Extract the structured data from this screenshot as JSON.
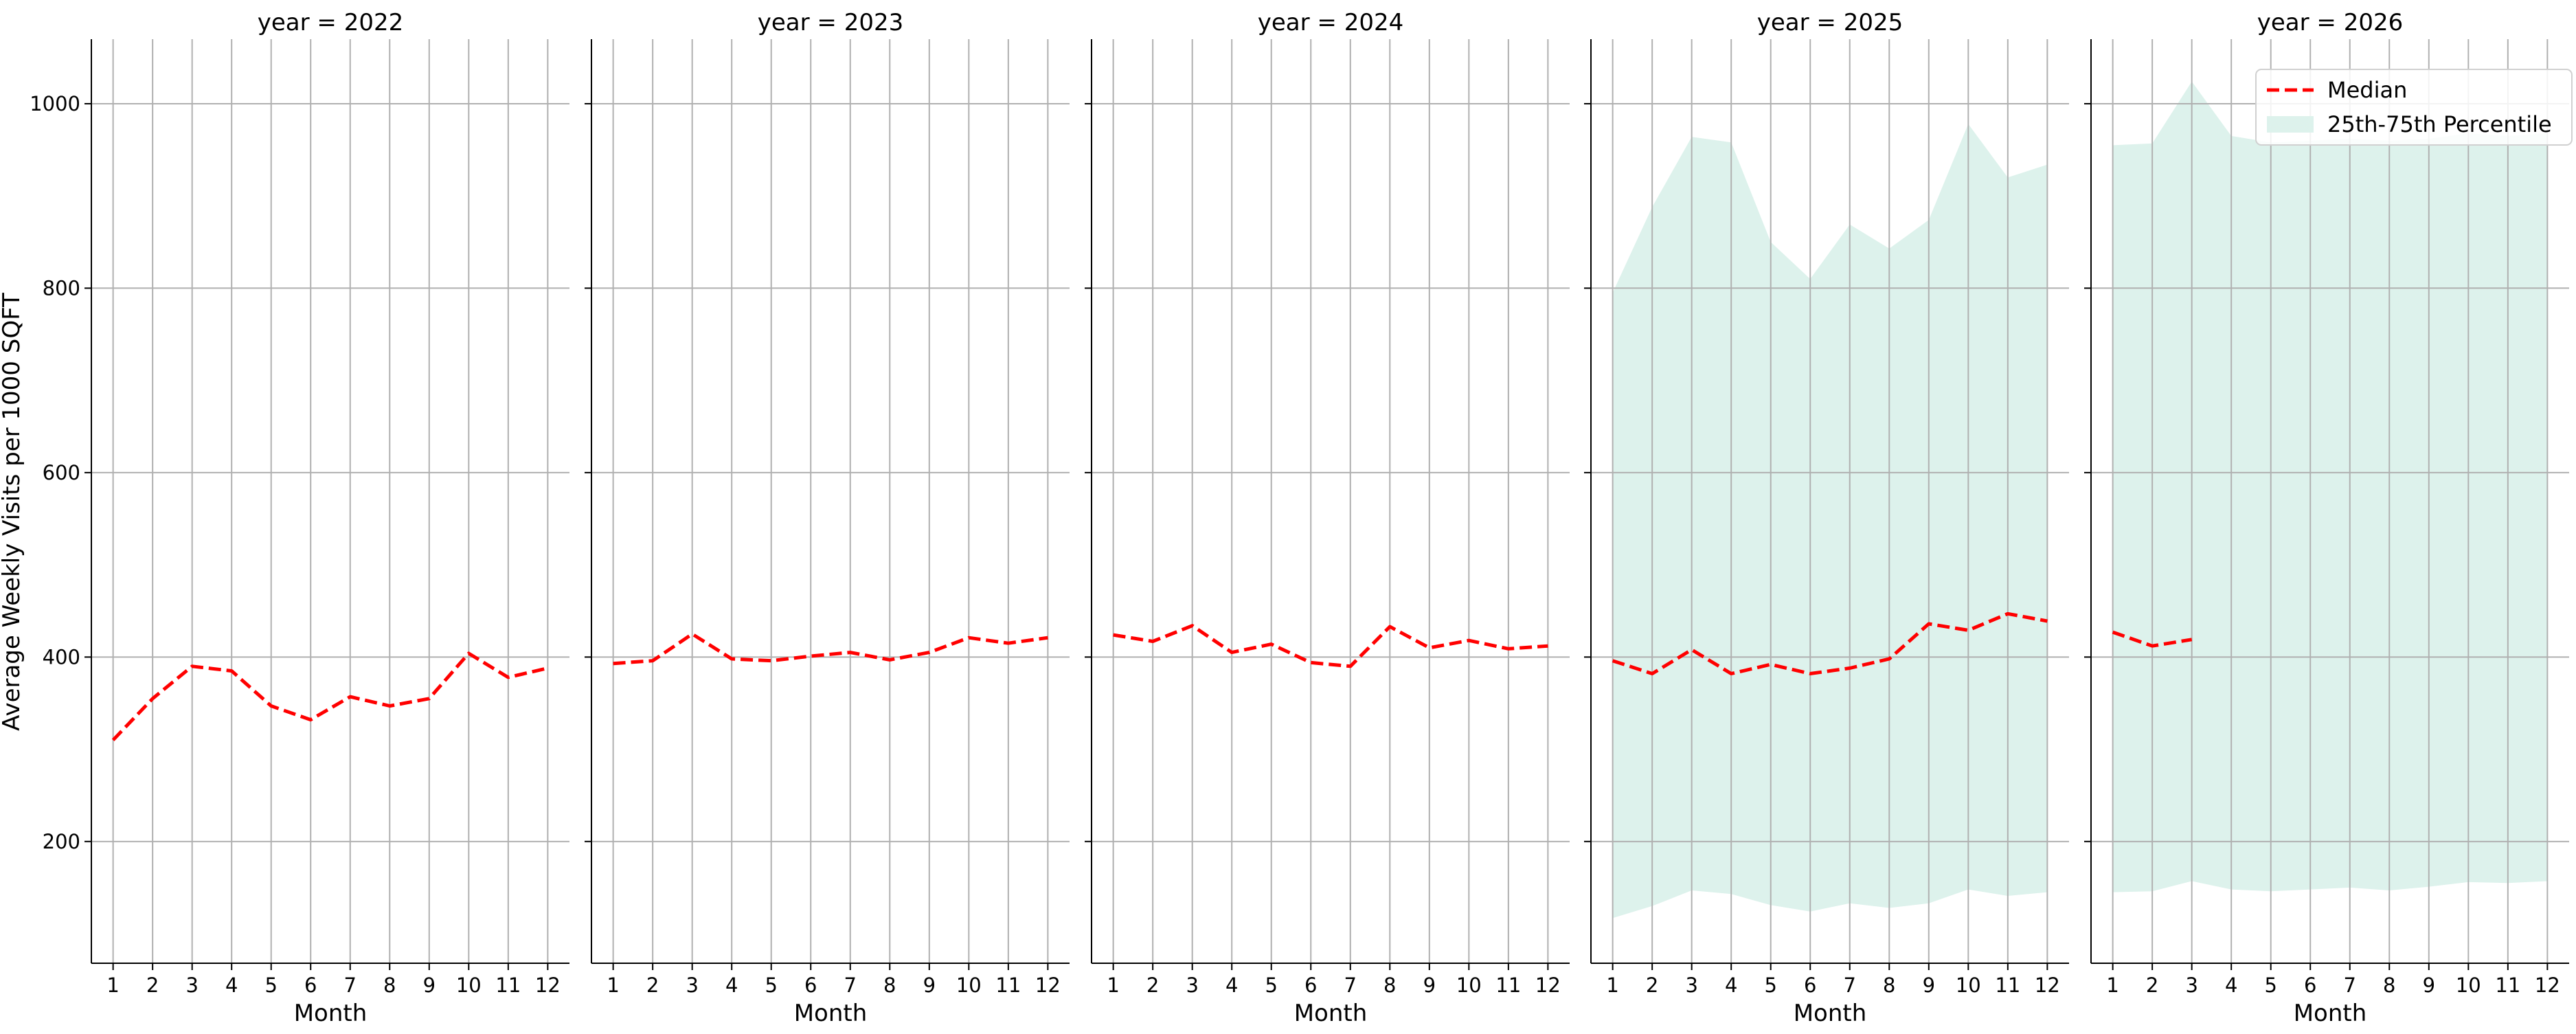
{
  "chart_data": {
    "type": "line",
    "facet_label": "year",
    "ylabel": "Average Weekly Visits per 1000 SQFT",
    "xlabel": "Month",
    "x_ticks": [
      1,
      2,
      3,
      4,
      5,
      6,
      7,
      8,
      9,
      10,
      11,
      12
    ],
    "y_ticks": [
      200,
      400,
      600,
      800,
      1000
    ],
    "ylim": [
      68,
      1070
    ],
    "xlim": [
      0.45,
      12.55
    ],
    "grid": true,
    "legend_placement": "top-right",
    "colors": {
      "median": "#ff0000",
      "band": "#ddf2ec",
      "grid": "#b0b0b0"
    },
    "legend": [
      {
        "label": "Median",
        "kind": "dashed-line"
      },
      {
        "label": "25th-75th Percentile",
        "kind": "patch"
      }
    ],
    "panels": [
      {
        "title": "year = 2022",
        "median": [
          {
            "x": 1,
            "y": 310
          },
          {
            "x": 2,
            "y": 355
          },
          {
            "x": 3,
            "y": 390
          },
          {
            "x": 4,
            "y": 385
          },
          {
            "x": 5,
            "y": 347
          },
          {
            "x": 6,
            "y": 332
          },
          {
            "x": 7,
            "y": 357
          },
          {
            "x": 8,
            "y": 347
          },
          {
            "x": 9,
            "y": 355
          },
          {
            "x": 10,
            "y": 404
          },
          {
            "x": 11,
            "y": 378
          },
          {
            "x": 12,
            "y": 388
          }
        ],
        "band": []
      },
      {
        "title": "year = 2023",
        "median": [
          {
            "x": 1,
            "y": 393
          },
          {
            "x": 2,
            "y": 396
          },
          {
            "x": 3,
            "y": 425
          },
          {
            "x": 4,
            "y": 398
          },
          {
            "x": 5,
            "y": 396
          },
          {
            "x": 6,
            "y": 401
          },
          {
            "x": 7,
            "y": 405
          },
          {
            "x": 8,
            "y": 397
          },
          {
            "x": 9,
            "y": 405
          },
          {
            "x": 10,
            "y": 421
          },
          {
            "x": 11,
            "y": 415
          },
          {
            "x": 12,
            "y": 421
          }
        ],
        "band": []
      },
      {
        "title": "year = 2024",
        "median": [
          {
            "x": 1,
            "y": 424
          },
          {
            "x": 2,
            "y": 417
          },
          {
            "x": 3,
            "y": 434
          },
          {
            "x": 4,
            "y": 405
          },
          {
            "x": 5,
            "y": 414
          },
          {
            "x": 6,
            "y": 394
          },
          {
            "x": 7,
            "y": 390
          },
          {
            "x": 8,
            "y": 433
          },
          {
            "x": 9,
            "y": 410
          },
          {
            "x": 10,
            "y": 418
          },
          {
            "x": 11,
            "y": 409
          },
          {
            "x": 12,
            "y": 412
          }
        ],
        "band": []
      },
      {
        "title": "year = 2025",
        "median": [
          {
            "x": 1,
            "y": 396
          },
          {
            "x": 2,
            "y": 382
          },
          {
            "x": 3,
            "y": 408
          },
          {
            "x": 4,
            "y": 382
          },
          {
            "x": 5,
            "y": 392
          },
          {
            "x": 6,
            "y": 382
          },
          {
            "x": 7,
            "y": 388
          },
          {
            "x": 8,
            "y": 398
          },
          {
            "x": 9,
            "y": 436
          },
          {
            "x": 10,
            "y": 429
          },
          {
            "x": 11,
            "y": 447
          },
          {
            "x": 12,
            "y": 439
          }
        ],
        "band": [
          {
            "x": 1,
            "low": 117,
            "high": 795
          },
          {
            "x": 2,
            "low": 130,
            "high": 888
          },
          {
            "x": 3,
            "low": 147,
            "high": 964
          },
          {
            "x": 4,
            "low": 143,
            "high": 958
          },
          {
            "x": 5,
            "low": 131,
            "high": 850
          },
          {
            "x": 6,
            "low": 124,
            "high": 810
          },
          {
            "x": 7,
            "low": 133,
            "high": 869
          },
          {
            "x": 8,
            "low": 128,
            "high": 843
          },
          {
            "x": 9,
            "low": 133,
            "high": 874
          },
          {
            "x": 10,
            "low": 148,
            "high": 978
          },
          {
            "x": 11,
            "low": 141,
            "high": 920
          },
          {
            "x": 12,
            "low": 145,
            "high": 934
          }
        ]
      },
      {
        "title": "year = 2026",
        "median": [
          {
            "x": 1,
            "y": 427
          },
          {
            "x": 2,
            "y": 412
          },
          {
            "x": 3,
            "y": 419
          }
        ],
        "band": [
          {
            "x": 1,
            "low": 145,
            "high": 955
          },
          {
            "x": 2,
            "low": 146,
            "high": 957
          },
          {
            "x": 3,
            "low": 157,
            "high": 1024
          },
          {
            "x": 4,
            "low": 148,
            "high": 965
          },
          {
            "x": 5,
            "low": 146,
            "high": 958
          },
          {
            "x": 6,
            "low": 148,
            "high": 960
          },
          {
            "x": 7,
            "low": 150,
            "high": 962
          },
          {
            "x": 8,
            "low": 147,
            "high": 960
          },
          {
            "x": 9,
            "low": 151,
            "high": 962
          },
          {
            "x": 10,
            "low": 156,
            "high": 968
          },
          {
            "x": 11,
            "low": 155,
            "high": 965
          },
          {
            "x": 12,
            "low": 157,
            "high": 968
          }
        ]
      }
    ]
  }
}
